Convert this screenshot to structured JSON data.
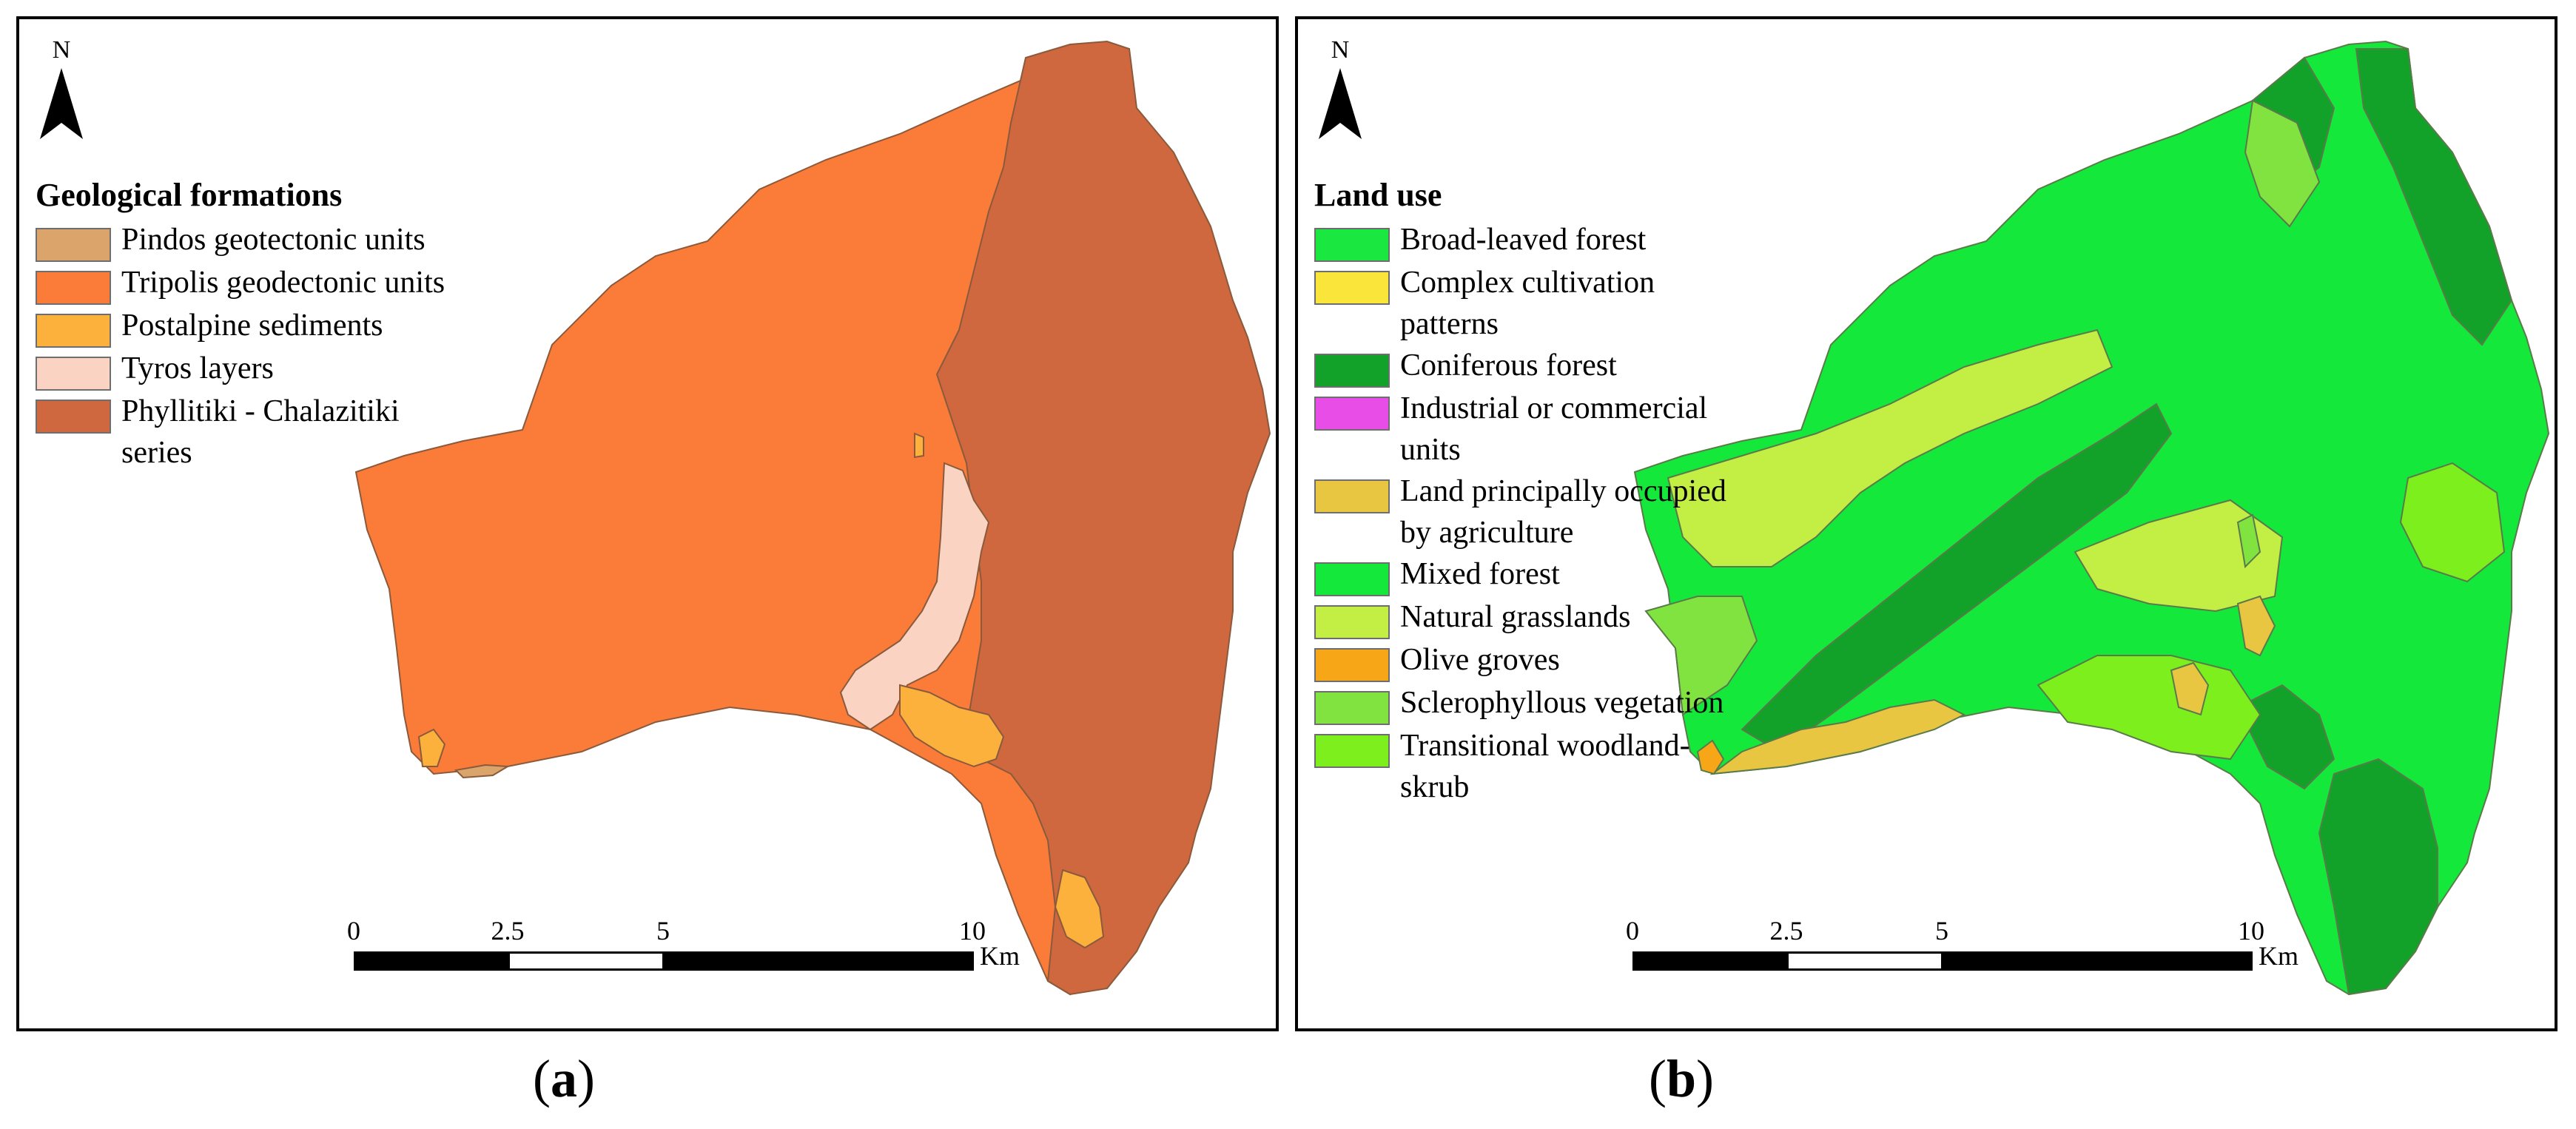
{
  "panels": [
    {
      "caption_letter": "a",
      "north_label": "N",
      "legend": {
        "title": "Geological formations",
        "items": [
          {
            "label": "Pindos geotectonic units",
            "color": "#dba46b"
          },
          {
            "label": "Tripolis geodectonic units",
            "color": "#fb7b39"
          },
          {
            "label": "Postalpine sediments",
            "color": "#fbb13c"
          },
          {
            "label": "Tyros layers",
            "color": "#fbd3c3"
          },
          {
            "label": "Phyllitiki - Chalazitiki series",
            "color": "#cf673f"
          }
        ]
      },
      "scale": {
        "ticks": [
          "0",
          "2.5",
          "5",
          "10"
        ],
        "unit": "Km"
      }
    },
    {
      "caption_letter": "b",
      "north_label": "N",
      "legend": {
        "title": "Land use",
        "items": [
          {
            "label": "Broad-leaved forest",
            "color": "#1ae840"
          },
          {
            "label": "Complex cultivation patterns",
            "color": "#fae63a"
          },
          {
            "label": "Coniferous forest",
            "color": "#12a22a"
          },
          {
            "label": "Industrial or commercial units",
            "color": "#e84de8"
          },
          {
            "label": "Land principally occupied by agriculture",
            "color": "#e9c642"
          },
          {
            "label": "Mixed forest",
            "color": "#14e83a"
          },
          {
            "label": "Natural grasslands",
            "color": "#c3ee44"
          },
          {
            "label": "Olive groves",
            "color": "#f7a618"
          },
          {
            "label": "Sclerophyllous vegetation",
            "color": "#80e33f"
          },
          {
            "label": "Transitional woodland-skrub",
            "color": "#7def1c"
          }
        ]
      },
      "scale": {
        "ticks": [
          "0",
          "2.5",
          "5",
          "10"
        ],
        "unit": "Km"
      }
    }
  ]
}
